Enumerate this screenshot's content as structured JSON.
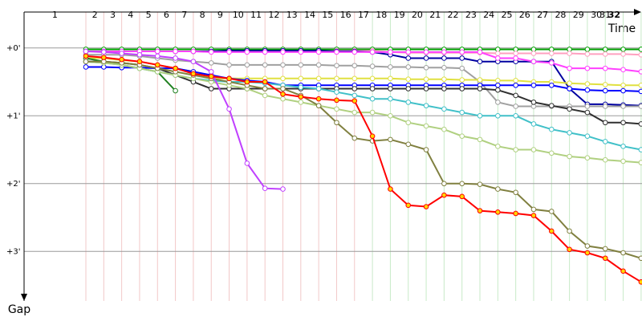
{
  "chart_data": {
    "type": "line",
    "x_label": "Time",
    "y_label": "Gap",
    "xlim": [
      0,
      34.5
    ],
    "ylim": [
      -0.53,
      3.73
    ],
    "y_inverted": true,
    "grid": true,
    "xticks": [
      {
        "value": 1.72,
        "label": "1"
      },
      {
        "value": 3.95,
        "label": "2"
      },
      {
        "value": 4.95,
        "label": "3"
      },
      {
        "value": 5.95,
        "label": "4"
      },
      {
        "value": 6.95,
        "label": "5"
      },
      {
        "value": 7.95,
        "label": "6"
      },
      {
        "value": 8.95,
        "label": "7"
      },
      {
        "value": 9.95,
        "label": "8"
      },
      {
        "value": 10.95,
        "label": "9"
      },
      {
        "value": 11.95,
        "label": "10"
      },
      {
        "value": 12.95,
        "label": "11"
      },
      {
        "value": 13.95,
        "label": "12"
      },
      {
        "value": 14.95,
        "label": "13"
      },
      {
        "value": 15.95,
        "label": "14"
      },
      {
        "value": 16.95,
        "label": "15"
      },
      {
        "value": 17.95,
        "label": "16"
      },
      {
        "value": 18.95,
        "label": "17"
      },
      {
        "value": 19.95,
        "label": "18"
      },
      {
        "value": 20.95,
        "label": "19"
      },
      {
        "value": 21.95,
        "label": "20"
      },
      {
        "value": 22.95,
        "label": "21"
      },
      {
        "value": 23.95,
        "label": "22"
      },
      {
        "value": 24.95,
        "label": "23"
      },
      {
        "value": 25.95,
        "label": "24"
      },
      {
        "value": 26.95,
        "label": "25"
      },
      {
        "value": 27.95,
        "label": "26"
      },
      {
        "value": 28.95,
        "label": "27"
      },
      {
        "value": 29.95,
        "label": "28"
      },
      {
        "value": 30.95,
        "label": "29"
      },
      {
        "value": 31.95,
        "label": "30"
      },
      {
        "value": 32.45,
        "label": "31"
      },
      {
        "value": 32.95,
        "label": "32"
      }
    ],
    "yticks": [
      {
        "value": 0,
        "label": "+0'"
      },
      {
        "value": 1,
        "label": "+1'"
      },
      {
        "value": 2,
        "label": "+2'"
      },
      {
        "value": 3,
        "label": "+3'"
      }
    ],
    "x": [
      3.45,
      4.45,
      5.45,
      6.45,
      7.45,
      8.45,
      9.45,
      10.45,
      11.45,
      12.45,
      13.45,
      14.45,
      15.45,
      16.45,
      17.45,
      18.45,
      19.45,
      20.45,
      21.45,
      22.45,
      23.45,
      24.45,
      25.45,
      26.45,
      27.45,
      28.45,
      29.45,
      30.45,
      31.45,
      32.45,
      33.45,
      34.45
    ],
    "series": [
      {
        "color": "#00a000",
        "values": [
          0.02,
          0.02,
          0.02,
          0.02,
          0.02,
          0.02,
          0.02,
          0.02,
          0.02,
          0.02,
          0.02,
          0.02,
          0.02,
          0.02,
          0.02,
          0.02,
          0.02,
          0.02,
          0.02,
          0.02,
          0.02,
          0.02,
          0.02,
          0.02,
          0.02,
          0.02,
          0.02,
          0.02,
          0.02,
          0.02,
          0.02,
          0.02
        ]
      },
      {
        "color": "#ffa0c0",
        "values": [
          0.05,
          0.05,
          0.05,
          0.05,
          0.05,
          0.05,
          0.05,
          0.05,
          0.05,
          0.05,
          0.05,
          0.05,
          0.05,
          0.05,
          0.04,
          0.04,
          0.04,
          0.06,
          0.07,
          0.07,
          0.07,
          0.07,
          0.07,
          0.08,
          0.08,
          0.08,
          0.08,
          0.08,
          0.09,
          0.09,
          0.09,
          0.1
        ]
      },
      {
        "color": "#0000a0",
        "values": [
          0.05,
          0.05,
          0.05,
          0.05,
          0.05,
          0.05,
          0.05,
          0.05,
          0.04,
          0.04,
          0.04,
          0.04,
          0.04,
          0.04,
          0.05,
          0.05,
          0.06,
          0.1,
          0.15,
          0.15,
          0.15,
          0.15,
          0.2,
          0.2,
          0.2,
          0.2,
          0.2,
          0.6,
          0.83,
          0.83,
          0.84,
          0.85
        ]
      },
      {
        "color": "#ff40ff",
        "values": [
          0.05,
          0.05,
          0.05,
          0.05,
          0.05,
          0.05,
          0.05,
          0.06,
          0.06,
          0.06,
          0.06,
          0.06,
          0.06,
          0.06,
          0.06,
          0.06,
          0.06,
          0.06,
          0.06,
          0.06,
          0.06,
          0.06,
          0.06,
          0.15,
          0.15,
          0.2,
          0.22,
          0.3,
          0.3,
          0.3,
          0.32,
          0.35
        ]
      },
      {
        "color": "#a0a0a0",
        "values": [
          0.1,
          0.1,
          0.1,
          0.12,
          0.15,
          0.18,
          0.2,
          0.22,
          0.25,
          0.25,
          0.25,
          0.25,
          0.25,
          0.25,
          0.26,
          0.26,
          0.27,
          0.28,
          0.28,
          0.29,
          0.29,
          0.3,
          0.5,
          0.8,
          0.86,
          0.86,
          0.86,
          0.86,
          0.86,
          0.86,
          0.86,
          0.86
        ]
      },
      {
        "color": "#e0e040",
        "values": [
          0.15,
          0.15,
          0.18,
          0.2,
          0.25,
          0.3,
          0.35,
          0.45,
          0.45,
          0.45,
          0.45,
          0.45,
          0.45,
          0.45,
          0.45,
          0.45,
          0.45,
          0.45,
          0.46,
          0.46,
          0.46,
          0.47,
          0.47,
          0.48,
          0.48,
          0.5,
          0.5,
          0.52,
          0.53,
          0.54,
          0.55,
          0.55
        ]
      },
      {
        "color": "#0000ff",
        "values": [
          0.28,
          0.28,
          0.29,
          0.29,
          0.3,
          0.3,
          0.35,
          0.4,
          0.45,
          0.48,
          0.5,
          0.55,
          0.55,
          0.55,
          0.55,
          0.55,
          0.55,
          0.55,
          0.55,
          0.55,
          0.55,
          0.55,
          0.55,
          0.55,
          0.55,
          0.55,
          0.55,
          0.6,
          0.62,
          0.63,
          0.63,
          0.64
        ]
      },
      {
        "color": "#303030",
        "values": [
          0.2,
          0.2,
          0.22,
          0.25,
          0.3,
          0.4,
          0.5,
          0.6,
          0.6,
          0.6,
          0.6,
          0.6,
          0.6,
          0.6,
          0.6,
          0.6,
          0.6,
          0.6,
          0.6,
          0.6,
          0.6,
          0.6,
          0.6,
          0.62,
          0.7,
          0.8,
          0.85,
          0.9,
          0.95,
          1.1,
          1.1,
          1.12
        ]
      },
      {
        "color": "#208020",
        "values": [
          0.15,
          0.2,
          0.25,
          0.3,
          0.35,
          0.63,
          null,
          null,
          null,
          null,
          null,
          null,
          null,
          null,
          null,
          null,
          null,
          null,
          null,
          null,
          null,
          null,
          null,
          null,
          null,
          null,
          null,
          null,
          null,
          null,
          null,
          null
        ]
      },
      {
        "color": "#40c0c8",
        "values": [
          0.2,
          0.22,
          0.25,
          0.3,
          0.35,
          0.4,
          0.45,
          0.48,
          0.5,
          0.5,
          0.52,
          0.55,
          0.58,
          0.6,
          0.65,
          0.7,
          0.75,
          0.75,
          0.8,
          0.85,
          0.9,
          0.95,
          1.0,
          1.0,
          1.0,
          1.12,
          1.2,
          1.25,
          1.3,
          1.38,
          1.45,
          1.5
        ]
      },
      {
        "color": "#b0d080",
        "values": [
          0.2,
          0.22,
          0.25,
          0.3,
          0.35,
          0.4,
          0.45,
          0.5,
          0.55,
          0.6,
          0.7,
          0.75,
          0.8,
          0.85,
          0.9,
          0.95,
          0.95,
          1.0,
          1.1,
          1.15,
          1.2,
          1.3,
          1.35,
          1.45,
          1.5,
          1.5,
          1.55,
          1.6,
          1.62,
          1.65,
          1.67,
          1.69
        ]
      },
      {
        "color": "#808040",
        "values": [
          0.2,
          0.2,
          0.22,
          0.25,
          0.3,
          0.35,
          0.4,
          0.45,
          0.5,
          0.55,
          0.6,
          0.6,
          0.7,
          0.85,
          1.1,
          1.33,
          1.37,
          1.35,
          1.42,
          1.5,
          2.0,
          2.0,
          2.01,
          2.08,
          2.13,
          2.38,
          2.41,
          2.7,
          2.92,
          2.96,
          3.02,
          3.1
        ]
      },
      {
        "color": "#c040ff",
        "values": [
          0.05,
          0.06,
          0.08,
          0.1,
          0.12,
          0.15,
          0.2,
          0.35,
          0.9,
          1.7,
          2.07,
          2.08,
          null,
          null,
          null,
          null,
          null,
          null,
          null,
          null,
          null,
          null,
          null,
          null,
          null,
          null,
          null,
          null,
          null,
          null,
          null,
          null
        ]
      },
      {
        "color": "#ff0000",
        "marker_color": "#ffd700",
        "values": [
          0.12,
          0.14,
          0.17,
          0.2,
          0.25,
          0.3,
          0.38,
          0.42,
          0.45,
          0.5,
          0.5,
          0.68,
          0.72,
          0.75,
          0.77,
          0.78,
          1.3,
          2.08,
          2.32,
          2.34,
          2.17,
          2.19,
          2.4,
          2.42,
          2.44,
          2.47,
          2.7,
          2.97,
          3.02,
          3.1,
          3.29,
          3.45
        ]
      }
    ]
  }
}
